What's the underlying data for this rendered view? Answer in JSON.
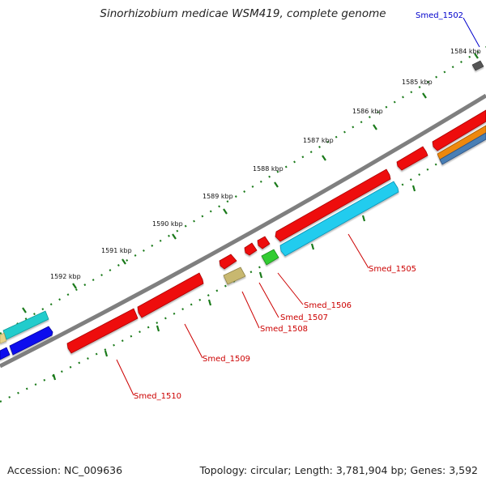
{
  "title": "Sinorhizobium medicae WSM419, complete genome",
  "footer": {
    "accession": "Accession: NC_009636",
    "topology": "Topology: circular; Length: 3,781,904 bp; Genes: 3,592"
  },
  "scale_labels": [
    "1584 kbp",
    "1585 kbp",
    "1586 kbp",
    "1587 kbp",
    "1588 kbp",
    "1589 kbp",
    "1590 kbp",
    "1591 kbp",
    "1592 kbp"
  ],
  "gene_labels": [
    "Smed_1502",
    "Smed_1505",
    "Smed_1506",
    "Smed_1507",
    "Smed_1508",
    "Smed_1509",
    "Smed_1510"
  ],
  "colors": {
    "backbone": "#808080",
    "ticks": "#1a7a1a",
    "cds_red": "#ee1111",
    "cds_cyan": "#22ccee",
    "cds_green": "#33cc33",
    "cds_khaki": "#c8b870",
    "cds_blue": "#1111ee",
    "cds_teal": "#22cccc",
    "cds_orange": "#ee8811",
    "label_red": "#cc0000",
    "label_blue": "#0000cc"
  }
}
